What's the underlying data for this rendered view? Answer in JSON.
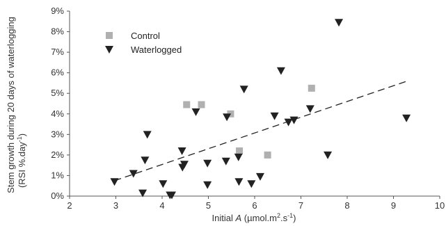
{
  "chart_data": {
    "type": "scatter",
    "xlabel_main": "Initial ",
    "xlabel_italic": "A",
    "xlabel_units": " (µmol.m",
    "xlabel_sup1": "2",
    "xlabel_mid": ".s",
    "xlabel_sup2": "-1",
    "xlabel_end": ")",
    "ylabel_line1": "Stem growth during 20 days of waterlogging",
    "ylabel_line2_main": "(RSI %.day",
    "ylabel_line2_sup": "-1",
    "ylabel_line2_end": ")",
    "xlim": [
      2,
      10
    ],
    "ylim": [
      0,
      9
    ],
    "x_ticks": [
      "2",
      "3",
      "4",
      "5",
      "6",
      "7",
      "8",
      "9",
      "10"
    ],
    "y_ticks": [
      "0%",
      "1%",
      "2%",
      "3%",
      "4%",
      "5%",
      "6%",
      "7%",
      "8%",
      "9%"
    ],
    "legend_position": "top-left",
    "series": [
      {
        "name": "Control",
        "marker": "square",
        "color": "#b0b0b0",
        "points": [
          {
            "x": 4.53,
            "y": 4.45
          },
          {
            "x": 4.85,
            "y": 4.45
          },
          {
            "x": 5.48,
            "y": 4.0
          },
          {
            "x": 5.67,
            "y": 2.2
          },
          {
            "x": 6.28,
            "y": 2.0
          },
          {
            "x": 7.23,
            "y": 5.25
          }
        ]
      },
      {
        "name": "Waterlogged",
        "marker": "triangle-down",
        "color": "#222222",
        "points": [
          {
            "x": 2.97,
            "y": 0.7
          },
          {
            "x": 3.38,
            "y": 1.1
          },
          {
            "x": 3.58,
            "y": 0.15
          },
          {
            "x": 3.63,
            "y": 1.75
          },
          {
            "x": 3.68,
            "y": 3.0
          },
          {
            "x": 4.02,
            "y": 0.6
          },
          {
            "x": 4.17,
            "y": 0.05
          },
          {
            "x": 4.21,
            "y": 0.05
          },
          {
            "x": 4.43,
            "y": 2.2
          },
          {
            "x": 4.44,
            "y": 1.4
          },
          {
            "x": 4.48,
            "y": 1.55
          },
          {
            "x": 4.73,
            "y": 4.1
          },
          {
            "x": 4.98,
            "y": 0.55
          },
          {
            "x": 4.98,
            "y": 1.6
          },
          {
            "x": 5.38,
            "y": 1.7
          },
          {
            "x": 5.4,
            "y": 3.85
          },
          {
            "x": 5.65,
            "y": 1.9
          },
          {
            "x": 5.66,
            "y": 0.7
          },
          {
            "x": 5.77,
            "y": 5.2
          },
          {
            "x": 5.93,
            "y": 0.6
          },
          {
            "x": 6.12,
            "y": 0.95
          },
          {
            "x": 6.43,
            "y": 3.9
          },
          {
            "x": 6.57,
            "y": 6.1
          },
          {
            "x": 6.73,
            "y": 3.6
          },
          {
            "x": 6.85,
            "y": 3.7
          },
          {
            "x": 7.2,
            "y": 4.25
          },
          {
            "x": 7.58,
            "y": 2.0
          },
          {
            "x": 7.82,
            "y": 8.45
          },
          {
            "x": 9.28,
            "y": 3.8
          }
        ]
      }
    ],
    "trendline": {
      "style": "dashed",
      "color": "#222222",
      "x": [
        2.97,
        9.3
      ],
      "y": [
        0.75,
        5.6
      ]
    }
  }
}
